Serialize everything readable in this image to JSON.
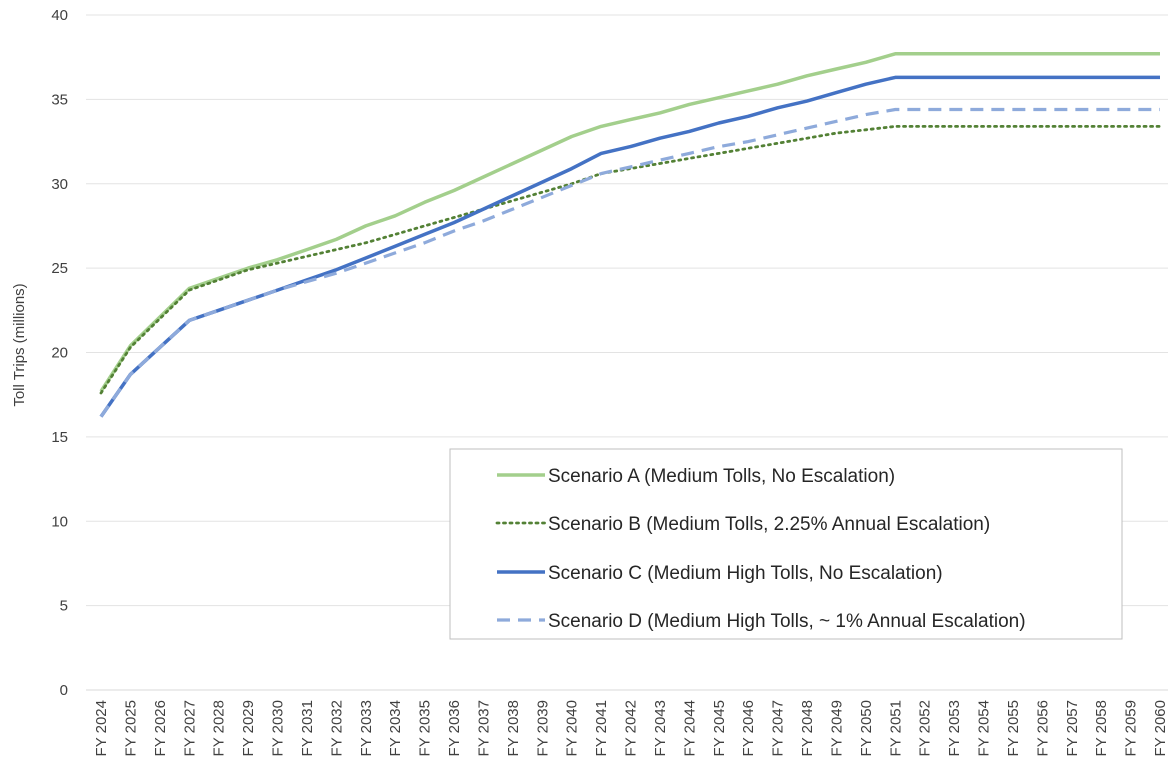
{
  "chart_data": {
    "type": "line",
    "title": "",
    "xlabel": "",
    "ylabel": "Toll Trips (millions)",
    "ylim": [
      0,
      40
    ],
    "yticks": [
      0,
      5,
      10,
      15,
      20,
      25,
      30,
      35,
      40
    ],
    "grid": "horizontal",
    "legend_position": "bottom-right",
    "x": [
      "FY 2024",
      "FY 2025",
      "FY 2026",
      "FY 2027",
      "FY 2028",
      "FY 2029",
      "FY 2030",
      "FY 2031",
      "FY 2032",
      "FY 2033",
      "FY 2034",
      "FY 2035",
      "FY 2036",
      "FY 2037",
      "FY 2038",
      "FY 2039",
      "FY 2040",
      "FY 2041",
      "FY 2042",
      "FY 2043",
      "FY 2044",
      "FY 2045",
      "FY 2046",
      "FY 2047",
      "FY 2048",
      "FY 2049",
      "FY 2050",
      "FY 2051",
      "FY 2052",
      "FY 2053",
      "FY 2054",
      "FY 2055",
      "FY 2056",
      "FY 2057",
      "FY 2058",
      "FY 2059",
      "FY 2060"
    ],
    "series": [
      {
        "name": "Scenario A (Medium Tolls, No Escalation)",
        "color": "#a3cf8c",
        "style": "solid",
        "values": [
          17.7,
          20.4,
          22.1,
          23.8,
          24.4,
          25.0,
          25.5,
          26.1,
          26.7,
          27.5,
          28.1,
          28.9,
          29.6,
          30.4,
          31.2,
          32.0,
          32.8,
          33.4,
          33.8,
          34.2,
          34.7,
          35.1,
          35.5,
          35.9,
          36.4,
          36.8,
          37.2,
          37.7,
          37.7,
          37.7,
          37.7,
          37.7,
          37.7,
          37.7,
          37.7,
          37.7,
          37.7
        ]
      },
      {
        "name": "Scenario B (Medium Tolls, 2.25% Annual Escalation)",
        "color": "#538135",
        "style": "dotted",
        "values": [
          17.6,
          20.3,
          22.0,
          23.7,
          24.3,
          24.9,
          25.3,
          25.7,
          26.1,
          26.5,
          27.0,
          27.5,
          28.0,
          28.5,
          29.0,
          29.5,
          30.0,
          30.6,
          30.9,
          31.2,
          31.5,
          31.8,
          32.1,
          32.4,
          32.7,
          33.0,
          33.2,
          33.4,
          33.4,
          33.4,
          33.4,
          33.4,
          33.4,
          33.4,
          33.4,
          33.4,
          33.4
        ]
      },
      {
        "name": "Scenario C (Medium High Tolls, No Escalation)",
        "color": "#4472c4",
        "style": "solid",
        "values": [
          16.2,
          18.7,
          20.3,
          21.9,
          22.5,
          23.1,
          23.7,
          24.3,
          24.9,
          25.6,
          26.3,
          27.0,
          27.7,
          28.5,
          29.3,
          30.1,
          30.9,
          31.8,
          32.2,
          32.7,
          33.1,
          33.6,
          34.0,
          34.5,
          34.9,
          35.4,
          35.9,
          36.3,
          36.3,
          36.3,
          36.3,
          36.3,
          36.3,
          36.3,
          36.3,
          36.3,
          36.3
        ]
      },
      {
        "name": "Scenario D (Medium High Tolls, ~ 1% Annual Escalation)",
        "color": "#8eaadb",
        "style": "dashed",
        "values": [
          16.2,
          18.7,
          20.3,
          21.9,
          22.5,
          23.1,
          23.7,
          24.2,
          24.7,
          25.3,
          25.9,
          26.5,
          27.2,
          27.8,
          28.5,
          29.2,
          29.9,
          30.6,
          31.0,
          31.4,
          31.8,
          32.2,
          32.5,
          32.9,
          33.3,
          33.7,
          34.1,
          34.4,
          34.4,
          34.4,
          34.4,
          34.4,
          34.4,
          34.4,
          34.4,
          34.4,
          34.4
        ]
      }
    ]
  }
}
